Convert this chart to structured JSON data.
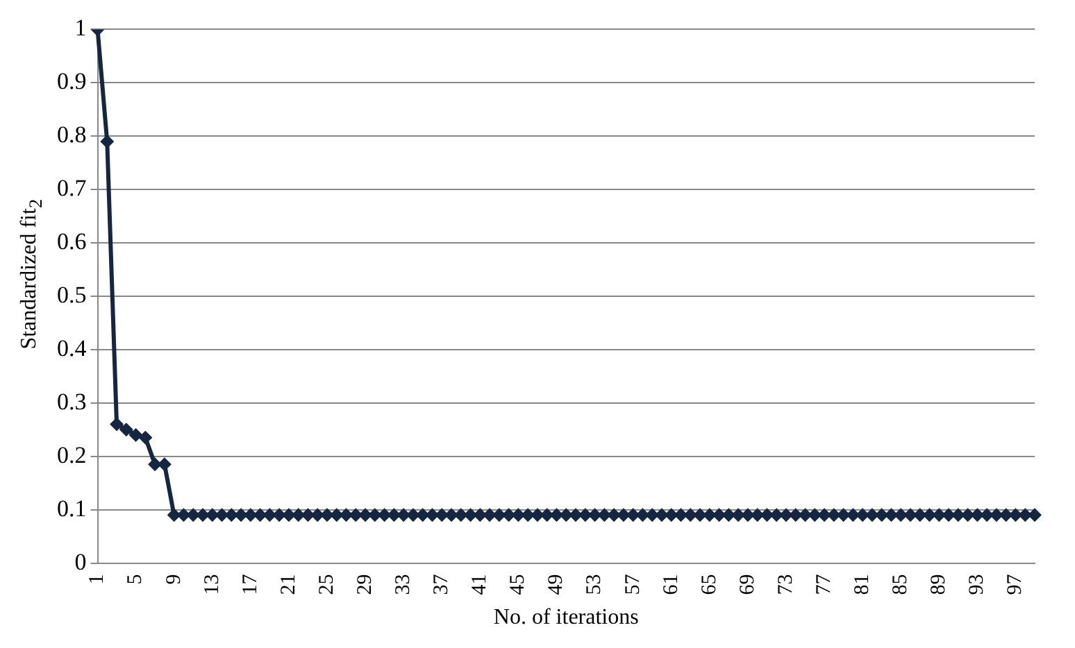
{
  "chart_data": {
    "type": "line",
    "xlabel": "No. of iterations",
    "ylabel": "Standardized fit$_{2}$",
    "categories": [
      "1",
      null,
      null,
      null,
      "5",
      null,
      null,
      null,
      "9",
      null,
      null,
      null,
      "13",
      null,
      null,
      null,
      "17",
      null,
      null,
      null,
      "21",
      null,
      null,
      null,
      "25",
      null,
      null,
      null,
      "29",
      null,
      null,
      null,
      "33",
      null,
      null,
      null,
      "37",
      null,
      null,
      null,
      "41",
      null,
      null,
      null,
      "45",
      null,
      null,
      null,
      "49",
      null,
      null,
      null,
      "53",
      null,
      null,
      null,
      "57",
      null,
      null,
      null,
      "61",
      null,
      null,
      null,
      "65",
      null,
      null,
      null,
      "69",
      null,
      null,
      null,
      "73",
      null,
      null,
      null,
      "77",
      null,
      null,
      null,
      "81",
      null,
      null,
      null,
      "85",
      null,
      null,
      null,
      "89",
      null,
      null,
      null,
      "93",
      null,
      null,
      null,
      "97",
      null,
      null
    ],
    "series": [
      {
        "color": "#142640",
        "values": [
          1,
          0.79,
          0.26,
          0.25,
          0.24,
          0.235,
          0.185,
          0.185,
          0.09,
          0.09,
          0.09,
          0.09,
          0.09,
          0.09,
          0.09,
          0.09,
          0.09,
          0.09,
          0.09,
          0.09,
          0.09,
          0.09,
          0.09,
          0.09,
          0.09,
          0.09,
          0.09,
          0.09,
          0.09,
          0.09,
          0.09,
          0.09,
          0.09,
          0.09,
          0.09,
          0.09,
          0.09,
          0.09,
          0.09,
          0.09,
          0.09,
          0.09,
          0.09,
          0.09,
          0.09,
          0.09,
          0.09,
          0.09,
          0.09,
          0.09,
          0.09,
          0.09,
          0.09,
          0.09,
          0.09,
          0.09,
          0.09,
          0.09,
          0.09,
          0.09,
          0.09,
          0.09,
          0.09,
          0.09,
          0.09,
          0.09,
          0.09,
          0.09,
          0.09,
          0.09,
          0.09,
          0.09,
          0.09,
          0.09,
          0.09,
          0.09,
          0.09,
          0.09,
          0.09,
          0.09,
          0.09,
          0.09,
          0.09,
          0.09,
          0.09,
          0.09,
          0.09,
          0.09,
          0.09,
          0.09,
          0.09,
          0.09,
          0.09,
          0.09,
          0.09,
          0.09,
          0.09,
          0.09,
          0.09
        ]
      }
    ],
    "ylim": [
      0,
      1
    ],
    "yticks": [
      0,
      0.1,
      0.2,
      0.3,
      0.4,
      0.5,
      0.6,
      0.7,
      0.8,
      0.9,
      1
    ],
    "grid": "y",
    "marker": "diamond",
    "line_style": "solid"
  }
}
